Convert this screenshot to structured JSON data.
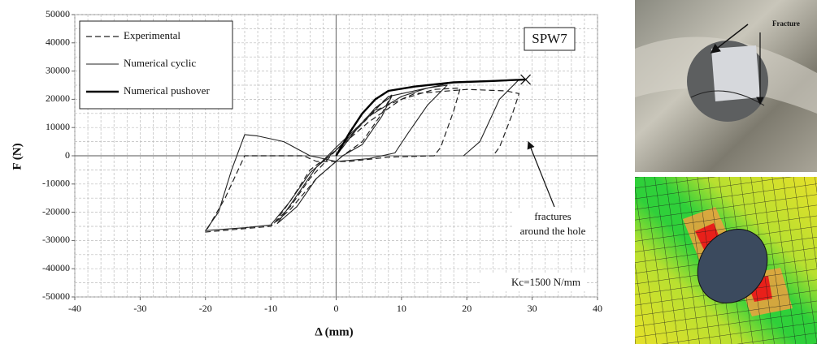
{
  "chart_data": {
    "type": "line",
    "box_label": "SPW7",
    "note": "Kc=1500 N/mm",
    "annotation": [
      "fractures",
      "around the hole"
    ],
    "x_label": "Δ (mm)",
    "y_label": "F (N)",
    "xlim": [
      -40,
      40
    ],
    "ylim": [
      -50000,
      50000
    ],
    "xticks": [
      -40,
      -30,
      -20,
      -10,
      0,
      10,
      20,
      30,
      40
    ],
    "yticks": [
      -50000,
      -40000,
      -30000,
      -20000,
      -10000,
      0,
      10000,
      20000,
      30000,
      40000,
      50000
    ],
    "xminorticks": [
      -40,
      -38,
      -36,
      -34,
      -32,
      -30,
      -28,
      -26,
      -24,
      -22,
      -20,
      -18,
      -16,
      -14,
      -12,
      -10,
      -8,
      -6,
      -4,
      -2,
      0,
      2,
      4,
      6,
      8,
      10,
      12,
      14,
      16,
      18,
      20,
      22,
      24,
      26,
      28,
      30,
      32,
      34,
      36,
      38,
      40
    ],
    "yminorticks": [
      -50000,
      -45000,
      -40000,
      -35000,
      -30000,
      -25000,
      -20000,
      -15000,
      -10000,
      -5000,
      0,
      5000,
      10000,
      15000,
      20000,
      25000,
      30000,
      35000,
      40000,
      45000,
      50000
    ],
    "grid": true,
    "fracture_point": [
      29,
      27000
    ],
    "series": [
      {
        "name": "Experimental",
        "color": "#222222",
        "dash": "dashed",
        "width": 1.2,
        "x": [
          0,
          4,
          7,
          8.5,
          7,
          4,
          1,
          -3,
          -7,
          -9.5,
          -7,
          -4,
          0,
          5,
          10,
          15,
          19,
          18,
          16,
          15,
          8,
          2,
          -3,
          -5,
          -14,
          -17,
          -20,
          -15,
          -10,
          -7,
          -4,
          0,
          6,
          12,
          20,
          26,
          28,
          27,
          25,
          24
        ],
        "values": [
          0,
          12000,
          19000,
          21500,
          15000,
          5000,
          0,
          -8000,
          -19000,
          -24000,
          -16000,
          -5000,
          2000,
          12000,
          20000,
          23500,
          24000,
          16000,
          3000,
          0,
          -500,
          -2000,
          -2000,
          0,
          0,
          -15000,
          -27000,
          -26000,
          -25000,
          -18000,
          -8000,
          2000,
          16000,
          22000,
          23500,
          23000,
          22000,
          15000,
          3000,
          0
        ]
      },
      {
        "name": "Numerical cyclic",
        "color": "#222222",
        "dash": "solid",
        "width": 1.1,
        "x": [
          0,
          3,
          6,
          8.5,
          7,
          4,
          1,
          -3,
          -6,
          -9,
          -6,
          -3,
          0,
          5,
          10,
          14,
          17,
          14,
          11,
          9,
          5,
          0,
          -4,
          -8,
          -12,
          -14,
          -16,
          -18,
          -20,
          -14,
          -10,
          -7,
          -4,
          0,
          8,
          18,
          28,
          25,
          22,
          19.5
        ],
        "values": [
          0,
          9000,
          17000,
          21000,
          14000,
          4000,
          0,
          -8000,
          -18000,
          -24000,
          -14000,
          -4000,
          3000,
          14000,
          21000,
          24000,
          25000,
          18000,
          8000,
          1000,
          -1000,
          -2000,
          0,
          5000,
          7000,
          7500,
          -5000,
          -20000,
          -26500,
          -25500,
          -24500,
          -16000,
          -6000,
          2000,
          21000,
          26000,
          27000,
          20000,
          5000,
          0
        ]
      },
      {
        "name": "Numerical pushover",
        "color": "#000000",
        "dash": "solid",
        "width": 2.4,
        "x": [
          0,
          2,
          4,
          6,
          8,
          12,
          18,
          24,
          29
        ],
        "values": [
          0,
          8000,
          15000,
          20000,
          23000,
          24500,
          26000,
          26500,
          27000
        ]
      }
    ]
  },
  "photo": {
    "label": "Fracture"
  }
}
